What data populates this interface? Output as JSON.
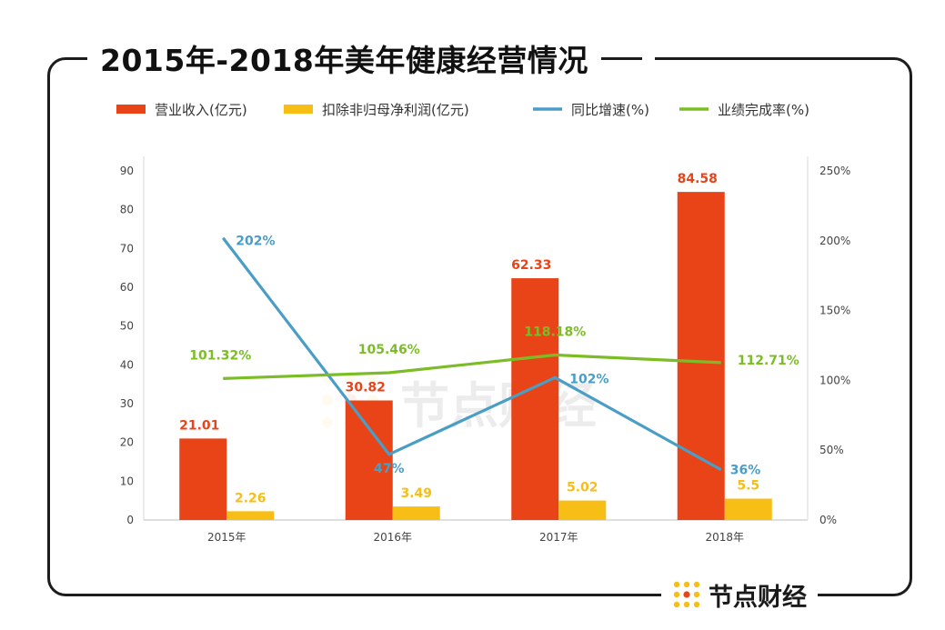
{
  "title": "2015年-2018年美年健康经营情况",
  "brand": "节点财经",
  "watermark": "节点财经",
  "colors": {
    "revenue": "#e84418",
    "profit": "#f7be15",
    "growth": "#4a9ec6",
    "completion": "#7cbd27"
  },
  "chart_data": {
    "type": "bar",
    "categories": [
      "2015年",
      "2016年",
      "2017年",
      "2018年"
    ],
    "series": [
      {
        "name": "营业收入(亿元)",
        "type": "bar",
        "axis": "left",
        "values": [
          21.01,
          30.82,
          62.33,
          84.58
        ],
        "labels": [
          "21.01",
          "30.82",
          "62.33",
          "84.58"
        ]
      },
      {
        "name": "扣除非归母净利润(亿元)",
        "type": "bar",
        "axis": "left",
        "values": [
          2.26,
          3.49,
          5.02,
          5.5
        ],
        "labels": [
          "2.26",
          "3.49",
          "5.02",
          "5.5"
        ]
      },
      {
        "name": "同比增速(%)",
        "type": "line",
        "axis": "right",
        "values": [
          202,
          47,
          102,
          36
        ],
        "labels": [
          "202%",
          "47%",
          "102%",
          "36%"
        ]
      },
      {
        "name": "业绩完成率(%)",
        "type": "line",
        "axis": "right",
        "values": [
          101.32,
          105.46,
          118.18,
          112.71
        ],
        "labels": [
          "101.32%",
          "105.46%",
          "118.18%",
          "112.71%"
        ]
      }
    ],
    "y_left": {
      "min": 0,
      "max": 90,
      "ticks": [
        "0",
        "10",
        "20",
        "30",
        "40",
        "50",
        "60",
        "70",
        "80",
        "90"
      ]
    },
    "y_right": {
      "min": 0,
      "max": 250,
      "ticks": [
        "0%",
        "50%",
        "100%",
        "150%",
        "200%",
        "250%"
      ]
    },
    "legend_position": "top",
    "grid": false
  }
}
